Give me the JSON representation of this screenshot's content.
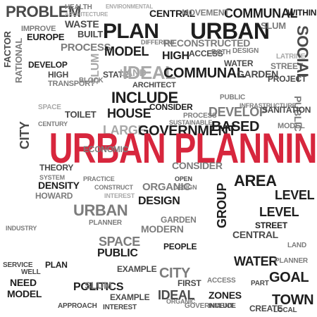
{
  "headline": {
    "text": "URBAN PLANNING",
    "color": "#d7263d"
  },
  "words": [
    "PROBLEM",
    "HEALTH",
    "ARCHITECTURE",
    "ENVIRONMENTAL",
    "WITHIN",
    "COMMUNAL",
    "CENTRAL",
    "MOVEMENT",
    "PLAN",
    "URBAN",
    "IMPROVE",
    "WASTE",
    "SLUM",
    "EUROPE",
    "BUILT",
    "PROCESS",
    "MODEL",
    "DIFFERENT",
    "RECONSTRUCTED",
    "ACCESS",
    "HIGH",
    "BOTH",
    "DESIGN",
    "STATE",
    "IDEAL",
    "COMMUNAL",
    "WATER",
    "GARDEN",
    "STREET",
    "LATRINE",
    "DEVELOP",
    "HIGH",
    "TRANSPORT",
    "ARCHITECT",
    "PROJECT",
    "INFRASTRUCTURE",
    "FACTOR",
    "RATIONAL",
    "CITY",
    "SLUM",
    "SOCIAL",
    "PUBLIC",
    "INCLUDE",
    "CONSIDER",
    "PUBLIC",
    "HOUSE",
    "TOILET",
    "PROCESS",
    "DEVELOP",
    "SANITATION",
    "SPACE",
    "LARGE",
    "GOVERNMENT",
    "SUSTAINABLE",
    "BASED",
    "MODEL",
    "CENTURY",
    "DENSITY",
    "HOWARD",
    "PRACTICE",
    "CONSTRUCT",
    "INTEREST",
    "URBAN",
    "DESIGN",
    "ORGANIC",
    "DESIGN",
    "AREA",
    "LEVEL",
    "GROUP",
    "CENTRAL",
    "STREET",
    "PLANNER",
    "POLITICS",
    "EXAMPLE",
    "CITY",
    "WATER",
    "GOAL",
    "GARDEN",
    "SERVICE",
    "MODEL",
    "INDUSTRY",
    "ZONES",
    "TOWN",
    "ACCESS",
    "APPROACH",
    "INTEREST",
    "CREATE",
    "ORGANIC",
    "FIRST",
    "GOVERNMENT",
    "INCLUDE",
    "PEOPLE",
    "PLAN",
    "PUBLIC",
    "LAND",
    "EXAMPLE",
    "PLANNER",
    "NEED",
    "SPACE",
    "MODERN",
    "WELL",
    "LOCAL",
    "PART",
    "LEVEL",
    "ECONOMIC",
    "CONSIDER",
    "THEORY",
    "OPEN",
    "SYSTEM",
    "BLOCK",
    "SLUM",
    "LAND",
    "IDEAL",
    "CITY"
  ]
}
